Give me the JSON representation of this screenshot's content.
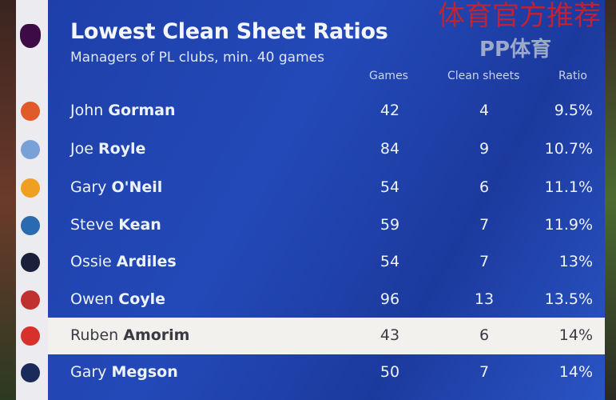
{
  "title": "Lowest Clean Sheet Ratios",
  "subtitle": "Managers of PL clubs, min. 40 games",
  "columns": {
    "games": "Games",
    "clean_sheets": "Clean sheets",
    "ratio": "Ratio"
  },
  "rows": [
    {
      "first": "John",
      "last": "Gorman",
      "games": "42",
      "clean_sheets": "4",
      "ratio": "9.5%",
      "crest_color": "#e05a2a"
    },
    {
      "first": "Joe",
      "last": "Royle",
      "games": "84",
      "clean_sheets": "9",
      "ratio": "10.7%",
      "crest_color": "#7aa0d8"
    },
    {
      "first": "Gary",
      "last": "O'Neil",
      "games": "54",
      "clean_sheets": "6",
      "ratio": "11.1%",
      "crest_color": "#f0a020"
    },
    {
      "first": "Steve",
      "last": "Kean",
      "games": "59",
      "clean_sheets": "7",
      "ratio": "11.9%",
      "crest_color": "#2a6ab0"
    },
    {
      "first": "Ossie",
      "last": "Ardiles",
      "games": "54",
      "clean_sheets": "7",
      "ratio": "13%",
      "crest_color": "#1a1f3a"
    },
    {
      "first": "Owen",
      "last": "Coyle",
      "games": "96",
      "clean_sheets": "13",
      "ratio": "13.5%",
      "crest_color": "#c03030"
    },
    {
      "first": "Ruben",
      "last": "Amorim",
      "games": "43",
      "clean_sheets": "6",
      "ratio": "14%",
      "crest_color": "#d8302a",
      "highlighted": true
    },
    {
      "first": "Gary",
      "last": "Megson",
      "games": "50",
      "clean_sheets": "7",
      "ratio": "14%",
      "crest_color": "#1a2a5a"
    }
  ],
  "watermarks": {
    "top": "体育官方推荐",
    "bottom": "PP体育"
  },
  "colors": {
    "panel": "#2349b8",
    "highlight_row": "#f2f1ee",
    "logo_strip": "#ecebf0"
  }
}
